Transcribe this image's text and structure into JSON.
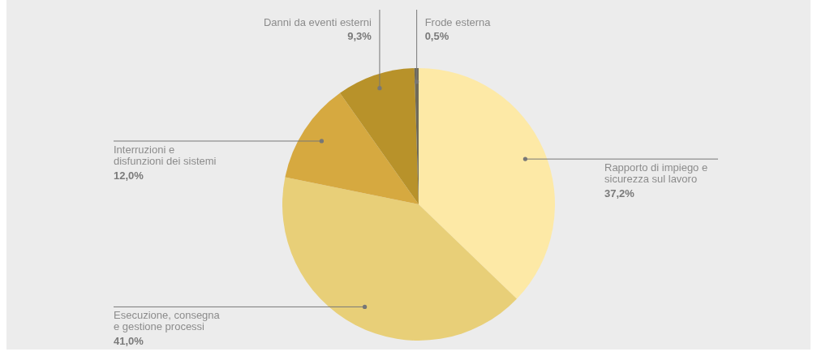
{
  "chart_data": {
    "type": "pie",
    "categories": [
      "Rapporto di impiego e sicurezza sul lavoro",
      "Esecuzione, consegna e gestione processi",
      "Interruzioni e disfunzioni dei sistemi",
      "Danni da eventi esterni",
      "Frode esterna"
    ],
    "values": [
      37.2,
      41.0,
      12.0,
      9.3,
      0.5
    ],
    "colors": [
      "#fde9a6",
      "#e8cf78",
      "#d6a940",
      "#b8922a",
      "#6e6a5a"
    ],
    "value_labels": [
      "37,2%",
      "41,0%",
      "12,0%",
      "9,3%",
      "0,5%"
    ]
  }
}
